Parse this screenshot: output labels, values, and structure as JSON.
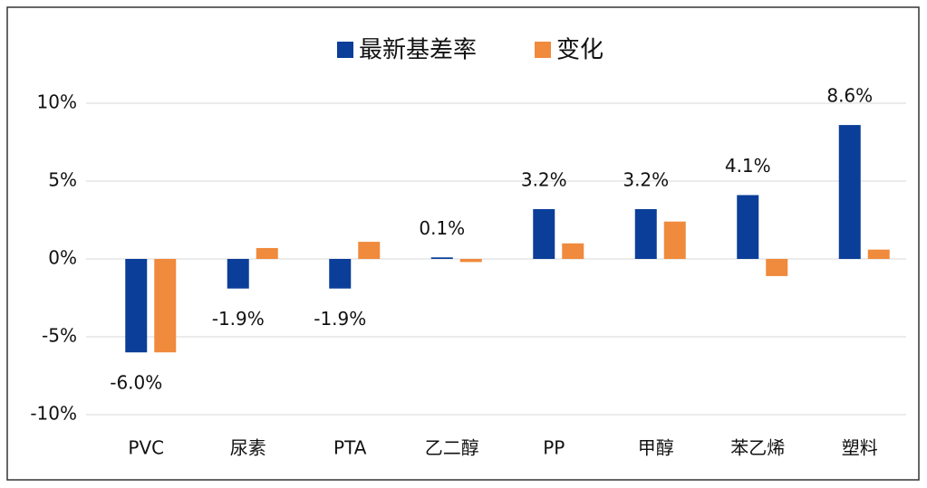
{
  "chart_data": {
    "type": "bar",
    "categories": [
      "PVC",
      "尿素",
      "PTA",
      "乙二醇",
      "PP",
      "甲醇",
      "苯乙烯",
      "塑料"
    ],
    "series": [
      {
        "name": "最新基差率",
        "color": "#0a3e99",
        "values": [
          -6.0,
          -1.9,
          -1.9,
          0.1,
          3.2,
          3.2,
          4.1,
          8.6
        ],
        "value_labels": [
          "-6.0%",
          "-1.9%",
          "-1.9%",
          "0.1%",
          "3.2%",
          "3.2%",
          "4.1%",
          "8.6%"
        ]
      },
      {
        "name": "变化",
        "color": "#f08a3c",
        "values": [
          -6.0,
          0.7,
          1.1,
          -0.2,
          1.0,
          2.4,
          -1.1,
          0.6
        ]
      }
    ],
    "ylim": [
      -10,
      10
    ],
    "yticks": [
      {
        "value": -10,
        "label": "-10%"
      },
      {
        "value": -5,
        "label": "-5%"
      },
      {
        "value": 0,
        "label": "0%"
      },
      {
        "value": 5,
        "label": "5%"
      },
      {
        "value": 10,
        "label": "10%"
      }
    ],
    "grid": true,
    "legend": "top"
  }
}
